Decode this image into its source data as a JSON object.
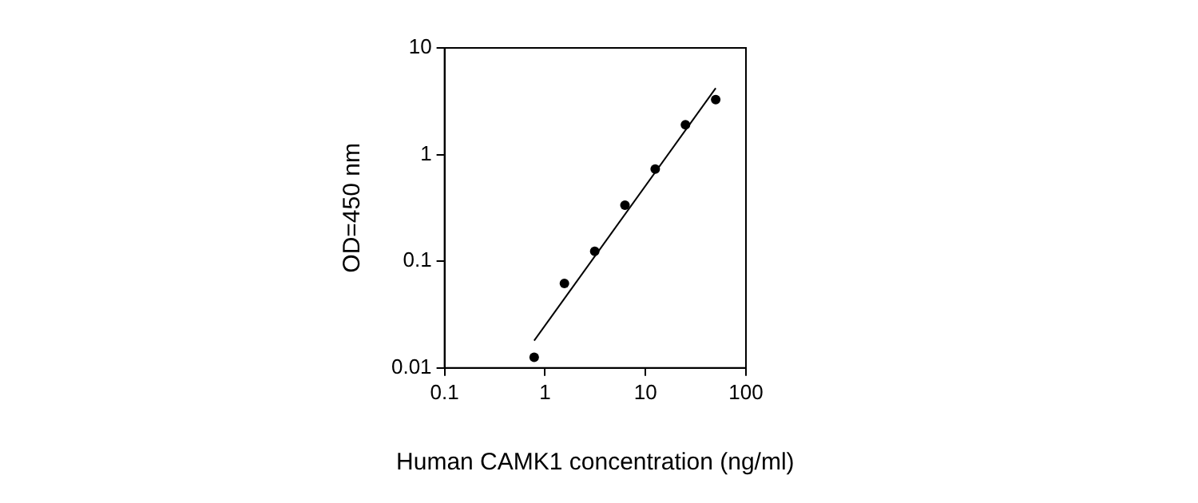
{
  "chart_data": {
    "type": "scatter",
    "xlabel": "Human CAMK1 concentration (ng/ml)",
    "ylabel": "OD=450 nm",
    "log": "xy",
    "grid": false,
    "legend": false,
    "marker": "circle",
    "xlim": [
      0.1,
      100
    ],
    "xticks": [
      0.1,
      1,
      10,
      100
    ],
    "ylim": [
      0.01,
      10
    ],
    "yticks": [
      0.01,
      0.1,
      1,
      10
    ],
    "series": [
      {
        "color": "#000000",
        "x": [
          0.78,
          1.56,
          3.125,
          6.25,
          12.5,
          25,
          50
        ],
        "values": [
          0.0126,
          0.062,
          0.124,
          0.335,
          0.73,
          1.9,
          3.27
        ]
      },
      {
        "type": "line",
        "color": "#000000",
        "marker": "none",
        "line_style": "solid",
        "x": [
          0.78,
          50
        ],
        "values": [
          0.018,
          4.2
        ]
      }
    ]
  }
}
